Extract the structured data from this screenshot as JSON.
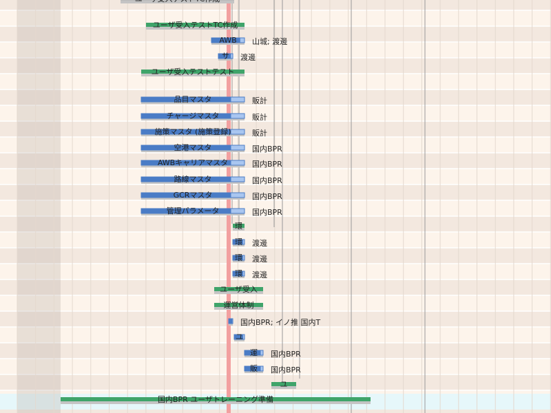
{
  "tasks": [
    {
      "label": "ユーザ受入テストTC作成"
    },
    {
      "label": "ユーザ受入テストTC作成"
    },
    {
      "label": "AWB",
      "resource": "山城; 渡邊"
    },
    {
      "label": "サ",
      "resource": "渡邊"
    },
    {
      "label": "ユーザ受入テストテスト"
    },
    {
      "label": "品目マスタ",
      "resource": "販計"
    },
    {
      "label": "チャージマスタ",
      "resource": "販計"
    },
    {
      "label": "施策マスタ (施策登録)",
      "resource": "販計"
    },
    {
      "label": "空港マスタ",
      "resource": "国内BPR"
    },
    {
      "label": "AWBキャリアマスタ",
      "resource": "国内BPR"
    },
    {
      "label": "路線マスタ",
      "resource": "国内BPR"
    },
    {
      "label": "GCRマスタ",
      "resource": "国内BPR"
    },
    {
      "label": "管理パラメータ",
      "resource": "国内BPR"
    },
    {
      "label": "環"
    },
    {
      "label": "環",
      "resource": "渡邊"
    },
    {
      "label": "環",
      "resource": "渡邊"
    },
    {
      "label": "環",
      "resource": "渡邊"
    },
    {
      "label": "ユーザ受入"
    },
    {
      "label": "運営体制"
    },
    {
      "resource": "国内BPR; イノ推 国内T"
    },
    {
      "label": "ユ"
    },
    {
      "label": "運",
      "resource": "国内BPR"
    },
    {
      "label": "販",
      "resource": "国内BPR"
    },
    {
      "label": "ユ"
    },
    {
      "label": "国内BPR ユーザトレーニング準備"
    }
  ]
}
